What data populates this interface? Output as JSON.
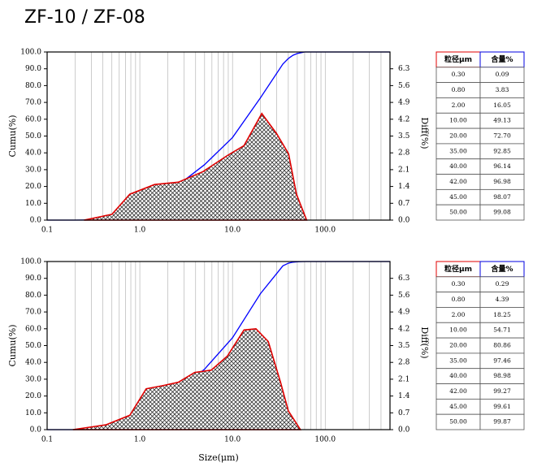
{
  "title": "ZF-10 / ZF-08",
  "chart_data": [
    {
      "type": "line",
      "ylabel": "Cumu(%)",
      "y2label": "Diff(%)",
      "xscale": "log",
      "xlim": [
        0.1,
        500
      ],
      "ylim": [
        0,
        100
      ],
      "y2lim": [
        0,
        7
      ],
      "xticks": [
        0.1,
        {
          "value": 1,
          "label": "1.0"
        },
        {
          "value": 10,
          "label": "10.0"
        },
        {
          "value": 100,
          "label": "100.0"
        }
      ],
      "xminorticks": [
        0.2,
        0.3,
        0.4,
        0.5,
        0.6,
        0.7,
        0.8,
        0.9,
        2,
        3,
        4,
        5,
        6,
        7,
        8,
        9,
        20,
        30,
        40,
        50,
        60,
        70,
        80,
        90,
        200,
        300,
        400
      ],
      "yticks": [
        {
          "value": 0,
          "label": "0.0"
        },
        {
          "value": 10,
          "label": "10.0"
        },
        {
          "value": 20,
          "label": "20.0"
        },
        {
          "value": 30,
          "label": "30.0"
        },
        {
          "value": 40,
          "label": "40.0"
        },
        {
          "value": 50,
          "label": "50.0"
        },
        {
          "value": 60,
          "label": "60.0"
        },
        {
          "value": 70,
          "label": "70.0"
        },
        {
          "value": 80,
          "label": "80.0"
        },
        {
          "value": 90,
          "label": "90.0"
        },
        {
          "value": 100,
          "label": "100.0"
        }
      ],
      "y2ticks": [
        {
          "value": 0,
          "label": "0.0"
        },
        0.7,
        1.4,
        2.1,
        2.8,
        3.5,
        4.2,
        4.9,
        5.6,
        6.3
      ],
      "grid": true,
      "series": [
        {
          "type": "line",
          "color": "#0000ff",
          "x": [
            0.1,
            0.2,
            0.3,
            0.5,
            0.8,
            1,
            2,
            5,
            10,
            20,
            35,
            40,
            42,
            45,
            50,
            60,
            500
          ],
          "values": [
            0,
            0,
            0.09,
            1.2,
            3.83,
            5.8,
            16.05,
            33,
            49.13,
            72.7,
            92.85,
            96.14,
            96.98,
            98.07,
            99.08,
            100,
            100
          ]
        },
        {
          "type": "area",
          "axis": "y2",
          "color": "#e00000",
          "x": [
            0.25,
            0.5,
            0.78,
            1.44,
            2.6,
            4.8,
            8.8,
            13.3,
            20.7,
            29.9,
            40.3,
            49,
            63
          ],
          "values": [
            0,
            0.24,
            1.08,
            1.48,
            1.58,
            2.02,
            2.69,
            3.1,
            4.44,
            3.6,
            2.76,
            1.08,
            0
          ]
        }
      ],
      "table": {
        "header": [
          "粒径μm",
          "含量%"
        ],
        "rows": [
          [
            "0.30",
            "0.09"
          ],
          [
            "0.80",
            "3.83"
          ],
          [
            "2.00",
            "16.05"
          ],
          [
            "10.00",
            "49.13"
          ],
          [
            "20.00",
            "72.70"
          ],
          [
            "35.00",
            "92.85"
          ],
          [
            "40.00",
            "96.14"
          ],
          [
            "42.00",
            "96.98"
          ],
          [
            "45.00",
            "98.07"
          ],
          [
            "50.00",
            "99.08"
          ]
        ]
      }
    },
    {
      "type": "line",
      "ylabel": "Cumu(%)",
      "y2label": "Diff(%)",
      "xlabel": "Size(μm)",
      "xscale": "log",
      "xlim": [
        0.1,
        500
      ],
      "ylim": [
        0,
        100
      ],
      "y2lim": [
        0,
        7
      ],
      "xticks": [
        0.1,
        {
          "value": 1,
          "label": "1.0"
        },
        {
          "value": 10,
          "label": "10.0"
        },
        {
          "value": 100,
          "label": "100.0"
        }
      ],
      "xminorticks": [
        0.2,
        0.3,
        0.4,
        0.5,
        0.6,
        0.7,
        0.8,
        0.9,
        2,
        3,
        4,
        5,
        6,
        7,
        8,
        9,
        20,
        30,
        40,
        50,
        60,
        70,
        80,
        90,
        200,
        300,
        400
      ],
      "yticks": [
        {
          "value": 0,
          "label": "0.0"
        },
        {
          "value": 10,
          "label": "10.0"
        },
        {
          "value": 20,
          "label": "20.0"
        },
        {
          "value": 30,
          "label": "30.0"
        },
        {
          "value": 40,
          "label": "40.0"
        },
        {
          "value": 50,
          "label": "50.0"
        },
        {
          "value": 60,
          "label": "60.0"
        },
        {
          "value": 70,
          "label": "70.0"
        },
        {
          "value": 80,
          "label": "80.0"
        },
        {
          "value": 90,
          "label": "90.0"
        },
        {
          "value": 100,
          "label": "100.0"
        }
      ],
      "y2ticks": [
        {
          "value": 0,
          "label": "0.0"
        },
        0.7,
        1.4,
        2.1,
        2.8,
        3.5,
        4.2,
        4.9,
        5.6,
        6.3
      ],
      "grid": true,
      "series": [
        {
          "type": "line",
          "color": "#0000ff",
          "x": [
            0.1,
            0.19,
            0.3,
            0.5,
            0.8,
            1,
            2,
            5,
            10,
            20,
            35,
            40,
            42,
            45,
            50,
            60,
            500
          ],
          "values": [
            0,
            0,
            0.29,
            1.5,
            4.39,
            7,
            18.25,
            36,
            54.71,
            80.86,
            97.46,
            98.98,
            99.27,
            99.61,
            99.87,
            100,
            100
          ]
        },
        {
          "type": "area",
          "axis": "y2",
          "color": "#e00000",
          "x": [
            0.19,
            0.43,
            0.78,
            1.17,
            1.76,
            2.6,
            3.9,
            5.9,
            8.8,
            13.3,
            17.9,
            24.3,
            33,
            40,
            54
          ],
          "values": [
            0,
            0.2,
            0.6,
            1.7,
            1.83,
            1.97,
            2.38,
            2.48,
            3.06,
            4.15,
            4.2,
            3.67,
            1.97,
            0.78,
            0
          ]
        }
      ],
      "table": {
        "header": [
          "粒径μm",
          "含量%"
        ],
        "rows": [
          [
            "0.30",
            "0.29"
          ],
          [
            "0.80",
            "4.39"
          ],
          [
            "2.00",
            "18.25"
          ],
          [
            "10.00",
            "54.71"
          ],
          [
            "20.00",
            "80.86"
          ],
          [
            "35.00",
            "97.46"
          ],
          [
            "40.00",
            "98.98"
          ],
          [
            "42.00",
            "99.27"
          ],
          [
            "45.00",
            "99.61"
          ],
          [
            "50.00",
            "99.87"
          ]
        ]
      }
    }
  ]
}
